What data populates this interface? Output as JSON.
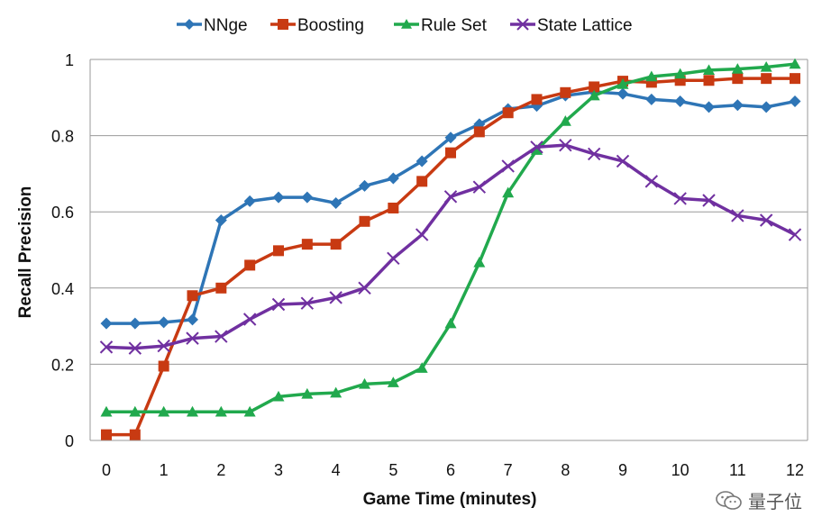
{
  "chart_data": {
    "type": "line",
    "title": "",
    "xlabel": "Game Time (minutes)",
    "ylabel": "Recall Precision",
    "xlim": [
      0,
      12
    ],
    "ylim": [
      0,
      1
    ],
    "x_ticks": [
      "0",
      "1",
      "2",
      "3",
      "4",
      "5",
      "6",
      "7",
      "8",
      "9",
      "10",
      "11",
      "12"
    ],
    "y_ticks": [
      "0",
      "0.2",
      "0.4",
      "0.6",
      "0.8",
      "1"
    ],
    "grid": "horizontal",
    "legend_position": "top",
    "x": [
      0,
      0.5,
      1,
      1.5,
      2,
      2.5,
      3,
      3.5,
      4,
      4.5,
      5,
      5.5,
      6,
      6.5,
      7,
      7.5,
      8,
      8.5,
      9,
      9.5,
      10,
      10.5,
      11,
      11.5,
      12
    ],
    "series": [
      {
        "name": "NNge",
        "color": "#2E75B6",
        "marker": "diamond",
        "values": [
          0.307,
          0.307,
          0.31,
          0.317,
          0.578,
          0.628,
          0.638,
          0.638,
          0.623,
          0.668,
          0.688,
          0.733,
          0.795,
          0.83,
          0.87,
          0.878,
          0.905,
          0.915,
          0.91,
          0.895,
          0.89,
          0.875,
          0.88,
          0.875,
          0.89
        ]
      },
      {
        "name": "Boosting",
        "color": "#C83A12",
        "marker": "square",
        "values": [
          0.015,
          0.015,
          0.195,
          0.38,
          0.4,
          0.46,
          0.498,
          0.515,
          0.515,
          0.575,
          0.61,
          0.68,
          0.755,
          0.81,
          0.86,
          0.895,
          0.913,
          0.928,
          0.943,
          0.94,
          0.945,
          0.945,
          0.95,
          0.95,
          0.95
        ]
      },
      {
        "name": "Rule Set",
        "color": "#21A94D",
        "marker": "triangle",
        "values": [
          0.075,
          0.075,
          0.075,
          0.075,
          0.075,
          0.075,
          0.115,
          0.122,
          0.125,
          0.148,
          0.152,
          0.19,
          0.307,
          0.467,
          0.65,
          0.762,
          0.838,
          0.905,
          0.935,
          0.955,
          0.962,
          0.972,
          0.975,
          0.98,
          0.988
        ]
      },
      {
        "name": "State Lattice",
        "color": "#7030A0",
        "marker": "x",
        "values": [
          0.245,
          0.242,
          0.248,
          0.268,
          0.273,
          0.318,
          0.357,
          0.36,
          0.375,
          0.4,
          0.478,
          0.54,
          0.64,
          0.665,
          0.72,
          0.77,
          0.775,
          0.752,
          0.733,
          0.68,
          0.635,
          0.63,
          0.59,
          0.578,
          0.54
        ]
      }
    ]
  },
  "watermark": {
    "text": "量子位",
    "icon": "wechat-icon"
  }
}
